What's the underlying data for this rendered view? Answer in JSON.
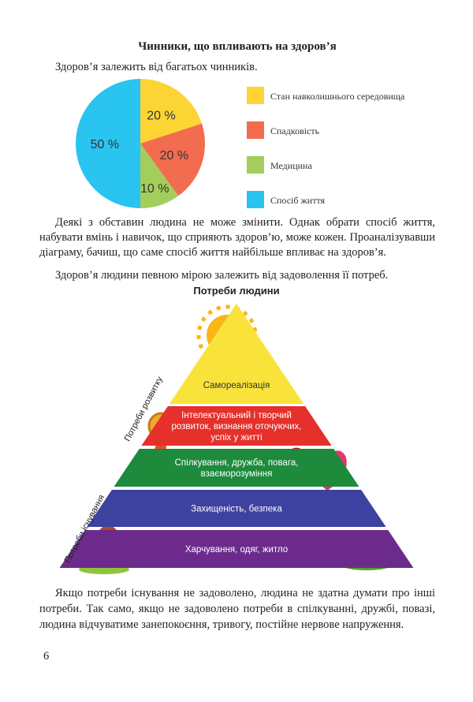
{
  "title": "Чинники, що впливають на здоров’я",
  "intro": "Здоров’я залежить від багатьох чинників.",
  "chart_data": {
    "type": "pie",
    "categories": [
      "Стан навколишнього середовища",
      "Спадковість",
      "Медицина",
      "Спосіб життя"
    ],
    "values": [
      20,
      20,
      10,
      50
    ],
    "value_labels": [
      "20 %",
      "20 %",
      "10 %",
      "50 %"
    ],
    "colors": [
      "#fcd535",
      "#f26c4f",
      "#a3ce5b",
      "#29c4f0"
    ]
  },
  "paragraphs": [
    "Деякі з обставин людина не може змінити. Однак обрати спосіб життя, набувати вмінь і навичок, що сприяють здоров’ю, може кожен. Проаналізувавши діаграму, бачиш, що саме спосіб життя найбільше впливає на здоров’я.",
    "Здоров’я людини певною мірою залежить від задоволення її потреб."
  ],
  "pyramid": {
    "title": "Потреби людини",
    "levels": [
      {
        "lines": [
          "Самореалізація"
        ],
        "color": "#f9e33a"
      },
      {
        "lines": [
          "Інтелектуальний і творчий",
          "розвиток, визнання оточуючих,",
          "успіх у житті"
        ],
        "color": "#e5302b"
      },
      {
        "lines": [
          "Спілкування, дружба, повага,",
          "взаєморозуміння"
        ],
        "color": "#1d8a3c"
      },
      {
        "lines": [
          "Захищеність, безпека"
        ],
        "color": "#3d41a0"
      },
      {
        "lines": [
          "Харчування, одяг, житло"
        ],
        "color": "#6c2b8c"
      }
    ],
    "side_labels": [
      "Потреби розвитку",
      "Потреби існування"
    ]
  },
  "closing": "Якщо потреби існування не задоволено, людина не здатна думати про інші потреби. Так само, якщо не задоволено потреби в спілкуванні, дружбі, повазі, людина відчуватиме занепокоєння, тривогу, постійне нервове напруження.",
  "page_number": "6"
}
